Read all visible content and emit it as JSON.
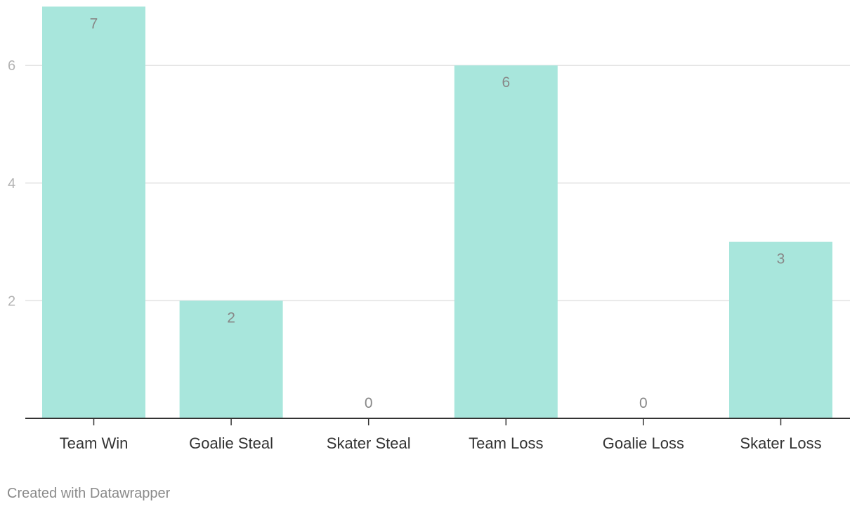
{
  "chart_data": {
    "type": "bar",
    "categories": [
      "Team Win",
      "Goalie Steal",
      "Skater Steal",
      "Team Loss",
      "Goalie Loss",
      "Skater Loss"
    ],
    "values": [
      7,
      2,
      0,
      6,
      0,
      3
    ],
    "y_ticks": [
      2,
      4,
      6
    ],
    "ylim": [
      0,
      7
    ],
    "grid": true,
    "bar_color": "#a8e6dc",
    "gridline_color": "#e3e3e3",
    "axis_color": "#333333",
    "tick_label_color": "#b3b3b3",
    "value_label_color": "#888888",
    "category_label_color": "#333333"
  },
  "footer": {
    "credit": "Created with Datawrapper"
  }
}
